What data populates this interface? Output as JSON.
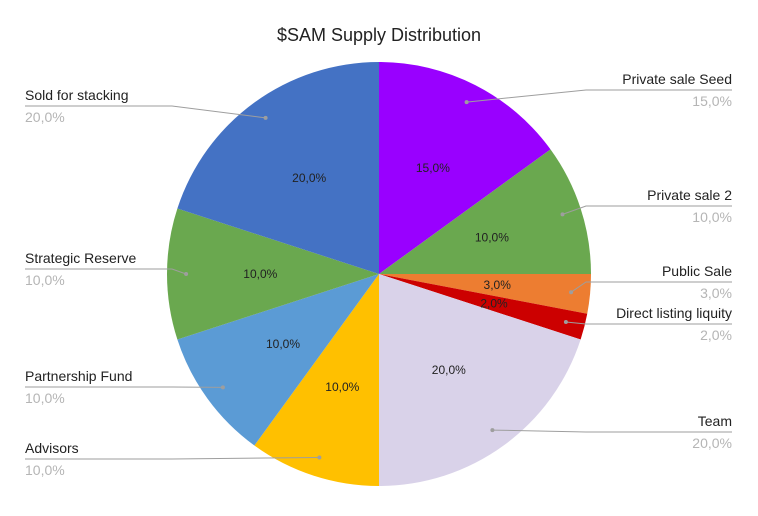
{
  "chart_data": {
    "type": "pie",
    "title": "$SAM Supply Distribution",
    "start_angle_deg": 0,
    "direction": "clockwise",
    "slices": [
      {
        "label": "Private sale Seed",
        "value": 15,
        "display": "15,0%",
        "color": "#9900ff"
      },
      {
        "label": "Private sale 2",
        "value": 10,
        "display": "10,0%",
        "color": "#6aa84f"
      },
      {
        "label": "Public Sale",
        "value": 3,
        "display": "3,0%",
        "color": "#ed7d31"
      },
      {
        "label": "Direct listing liquity",
        "value": 2,
        "display": "2,0%",
        "color": "#cc0000"
      },
      {
        "label": "Team",
        "value": 20,
        "display": "20,0%",
        "color": "#d9d2e9"
      },
      {
        "label": "Advisors",
        "value": 10,
        "display": "10,0%",
        "color": "#ffc000"
      },
      {
        "label": "Partnership Fund",
        "value": 10,
        "display": "10,0%",
        "color": "#5b9bd5"
      },
      {
        "label": "Strategic Reserve",
        "value": 10,
        "display": "10,0%",
        "color": "#6aa84f"
      },
      {
        "label": "Sold for stacking",
        "value": 20,
        "display": "20,0%",
        "color": "#4472c4"
      }
    ],
    "legend": "callout labels"
  }
}
